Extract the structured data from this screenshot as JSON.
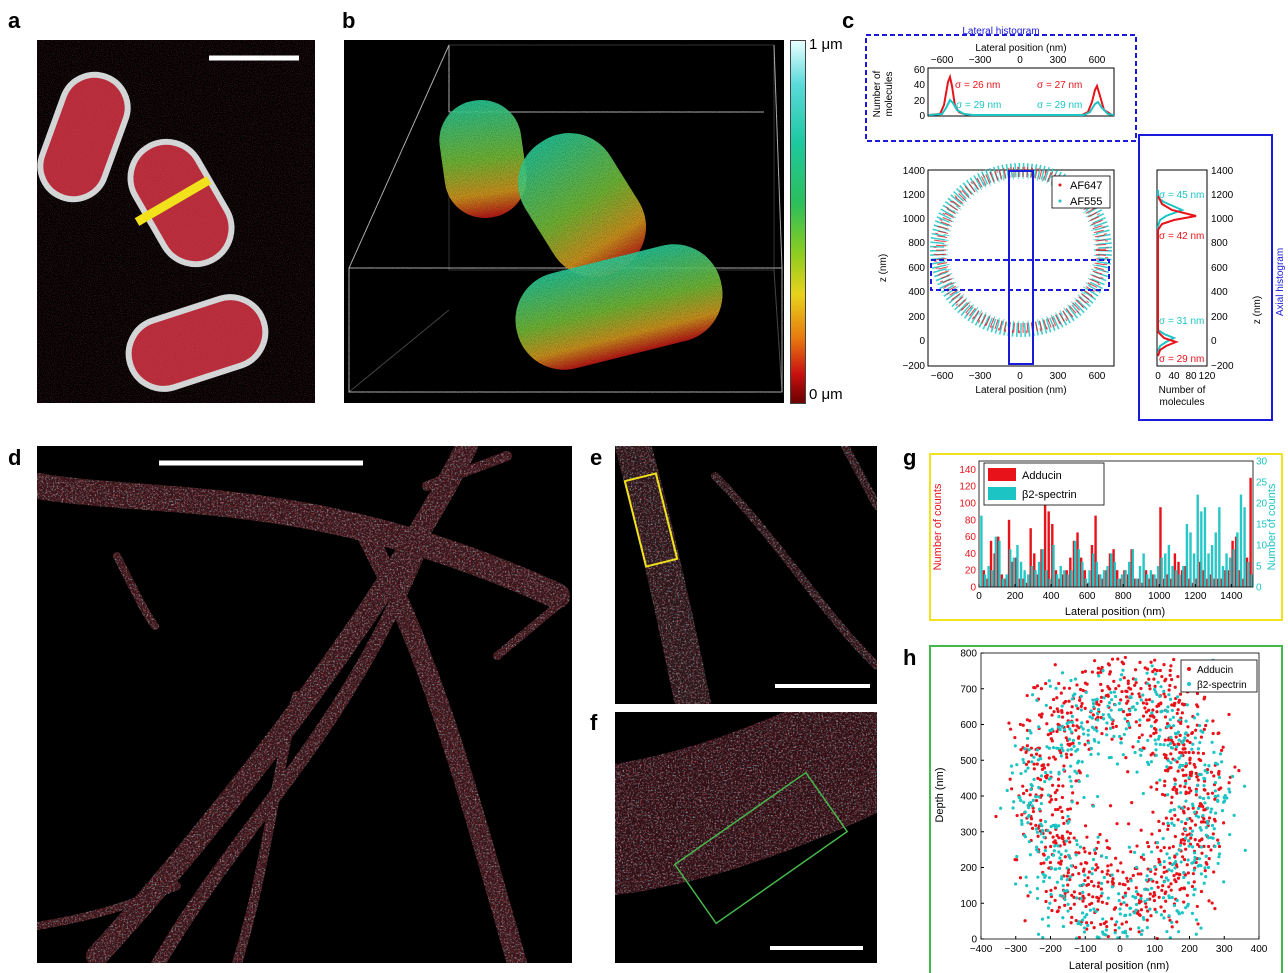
{
  "panels": {
    "a": "a",
    "b": "b",
    "c": "c",
    "d": "d",
    "e": "e",
    "f": "f",
    "g": "g",
    "h": "h"
  },
  "colorbar": {
    "top_label": "1 μm",
    "bottom_label": "0 μm"
  },
  "colors": {
    "red": "#e8121a",
    "cyan": "#1cc4c4",
    "blue": "#1a1adb",
    "yellow": "#f2e21c",
    "green": "#46b84a"
  },
  "panel_c": {
    "lateral_histogram": {
      "title": "Lateral histogram",
      "xlabel": "Lateral position (nm)",
      "ylabel": "Number of\nmolecules",
      "xticks": [
        "−600",
        "−300",
        "0",
        "300",
        "600"
      ],
      "yticks": [
        "0",
        "20",
        "40",
        "60"
      ],
      "sigma_labels": {
        "red_left": "σ = 26 nm",
        "red_right": "σ = 27 nm",
        "cyan_left": "σ = 29 nm",
        "cyan_right": "σ = 29 nm"
      }
    },
    "scatter": {
      "xlabel": "Lateral position (nm)",
      "ylabel": "z (nm)",
      "xticks": [
        "−600",
        "−300",
        "0",
        "300",
        "600"
      ],
      "yticks": [
        "−200",
        "0",
        "200",
        "400",
        "600",
        "800",
        "1000",
        "1200",
        "1400"
      ],
      "legend": [
        "AF647",
        "AF555"
      ]
    },
    "axial_histogram": {
      "title": "Axial histogram",
      "xlabel": "Number of\nmolecules",
      "ylabel": "z (nm)",
      "xticks": [
        "0",
        "40",
        "80",
        "120"
      ],
      "yticks": [
        "−200",
        "0",
        "200",
        "400",
        "600",
        "800",
        "1000",
        "1200",
        "1400"
      ],
      "sigma_labels": {
        "cyan_top": "σ = 45 nm",
        "red_top": "σ = 42 nm",
        "cyan_bottom": "σ = 31 nm",
        "red_bottom": "σ = 29 nm"
      }
    }
  },
  "chart_data": [
    {
      "type": "bar",
      "panel": "g",
      "xlabel": "Lateral position (nm)",
      "ylabel_left": "Number of counts",
      "ylabel_right": "Number of counts",
      "xlim": [
        0,
        1520
      ],
      "ylim_left": [
        0,
        150
      ],
      "ylim_right": [
        0,
        30
      ],
      "xticks": [
        "0",
        "200",
        "400",
        "600",
        "800",
        "1000",
        "1200",
        "1400"
      ],
      "yticks_left": [
        "0",
        "20",
        "40",
        "60",
        "80",
        "100",
        "120",
        "140"
      ],
      "yticks_right": [
        "0",
        "5",
        "10",
        "15",
        "20",
        "25",
        "30"
      ],
      "series": [
        {
          "name": "Adducin",
          "axis": "left",
          "bin_width": 20,
          "x_start": 0,
          "values": [
            0,
            20,
            10,
            55,
            40,
            60,
            15,
            10,
            80,
            30,
            35,
            10,
            10,
            5,
            70,
            40,
            15,
            45,
            100,
            90,
            75,
            20,
            10,
            15,
            20,
            35,
            55,
            65,
            35,
            20,
            5,
            50,
            85,
            15,
            10,
            20,
            40,
            45,
            20,
            10,
            20,
            15,
            45,
            10,
            10,
            5,
            20,
            10,
            15,
            10,
            95,
            10,
            15,
            10,
            40,
            30,
            20,
            25,
            10,
            5,
            10,
            30,
            20,
            10,
            15,
            10,
            10,
            10,
            20,
            20,
            55,
            60,
            20,
            10,
            35,
            130
          ]
        },
        {
          "name": "β2-spectrin",
          "axis": "right",
          "bin_width": 20,
          "x_start": 0,
          "values": [
            17,
            3,
            5,
            4,
            12,
            11,
            2,
            3,
            9,
            7,
            10,
            6,
            4,
            3,
            5,
            4,
            6,
            9,
            4,
            2,
            10,
            3,
            5,
            4,
            3,
            4,
            11,
            9,
            6,
            2,
            4,
            8,
            6,
            3,
            4,
            5,
            8,
            6,
            2,
            3,
            4,
            6,
            9,
            2,
            5,
            8,
            3,
            4,
            3,
            5,
            7,
            8,
            10,
            5,
            4,
            3,
            5,
            15,
            13,
            8,
            22,
            18,
            19,
            8,
            10,
            13,
            19,
            5,
            8,
            7,
            9,
            13,
            22,
            19,
            6,
            3
          ]
        }
      ]
    },
    {
      "type": "scatter",
      "panel": "h",
      "xlabel": "Lateral position (nm)",
      "ylabel": "Depth (nm)",
      "xlim": [
        -400,
        400
      ],
      "ylim": [
        0,
        800
      ],
      "xticks": [
        "−400",
        "−300",
        "−200",
        "−100",
        "0",
        "100",
        "200",
        "300",
        "400"
      ],
      "yticks": [
        "0",
        "100",
        "200",
        "300",
        "400",
        "500",
        "600",
        "700",
        "800"
      ],
      "series": [
        {
          "name": "Adducin",
          "ring": {
            "cx": 0,
            "cy": 400,
            "rx": 230,
            "ry": 300
          }
        },
        {
          "name": "β2-spectrin",
          "ring": {
            "cx": 0,
            "cy": 350,
            "rx": 250,
            "ry": 300
          }
        }
      ]
    }
  ]
}
